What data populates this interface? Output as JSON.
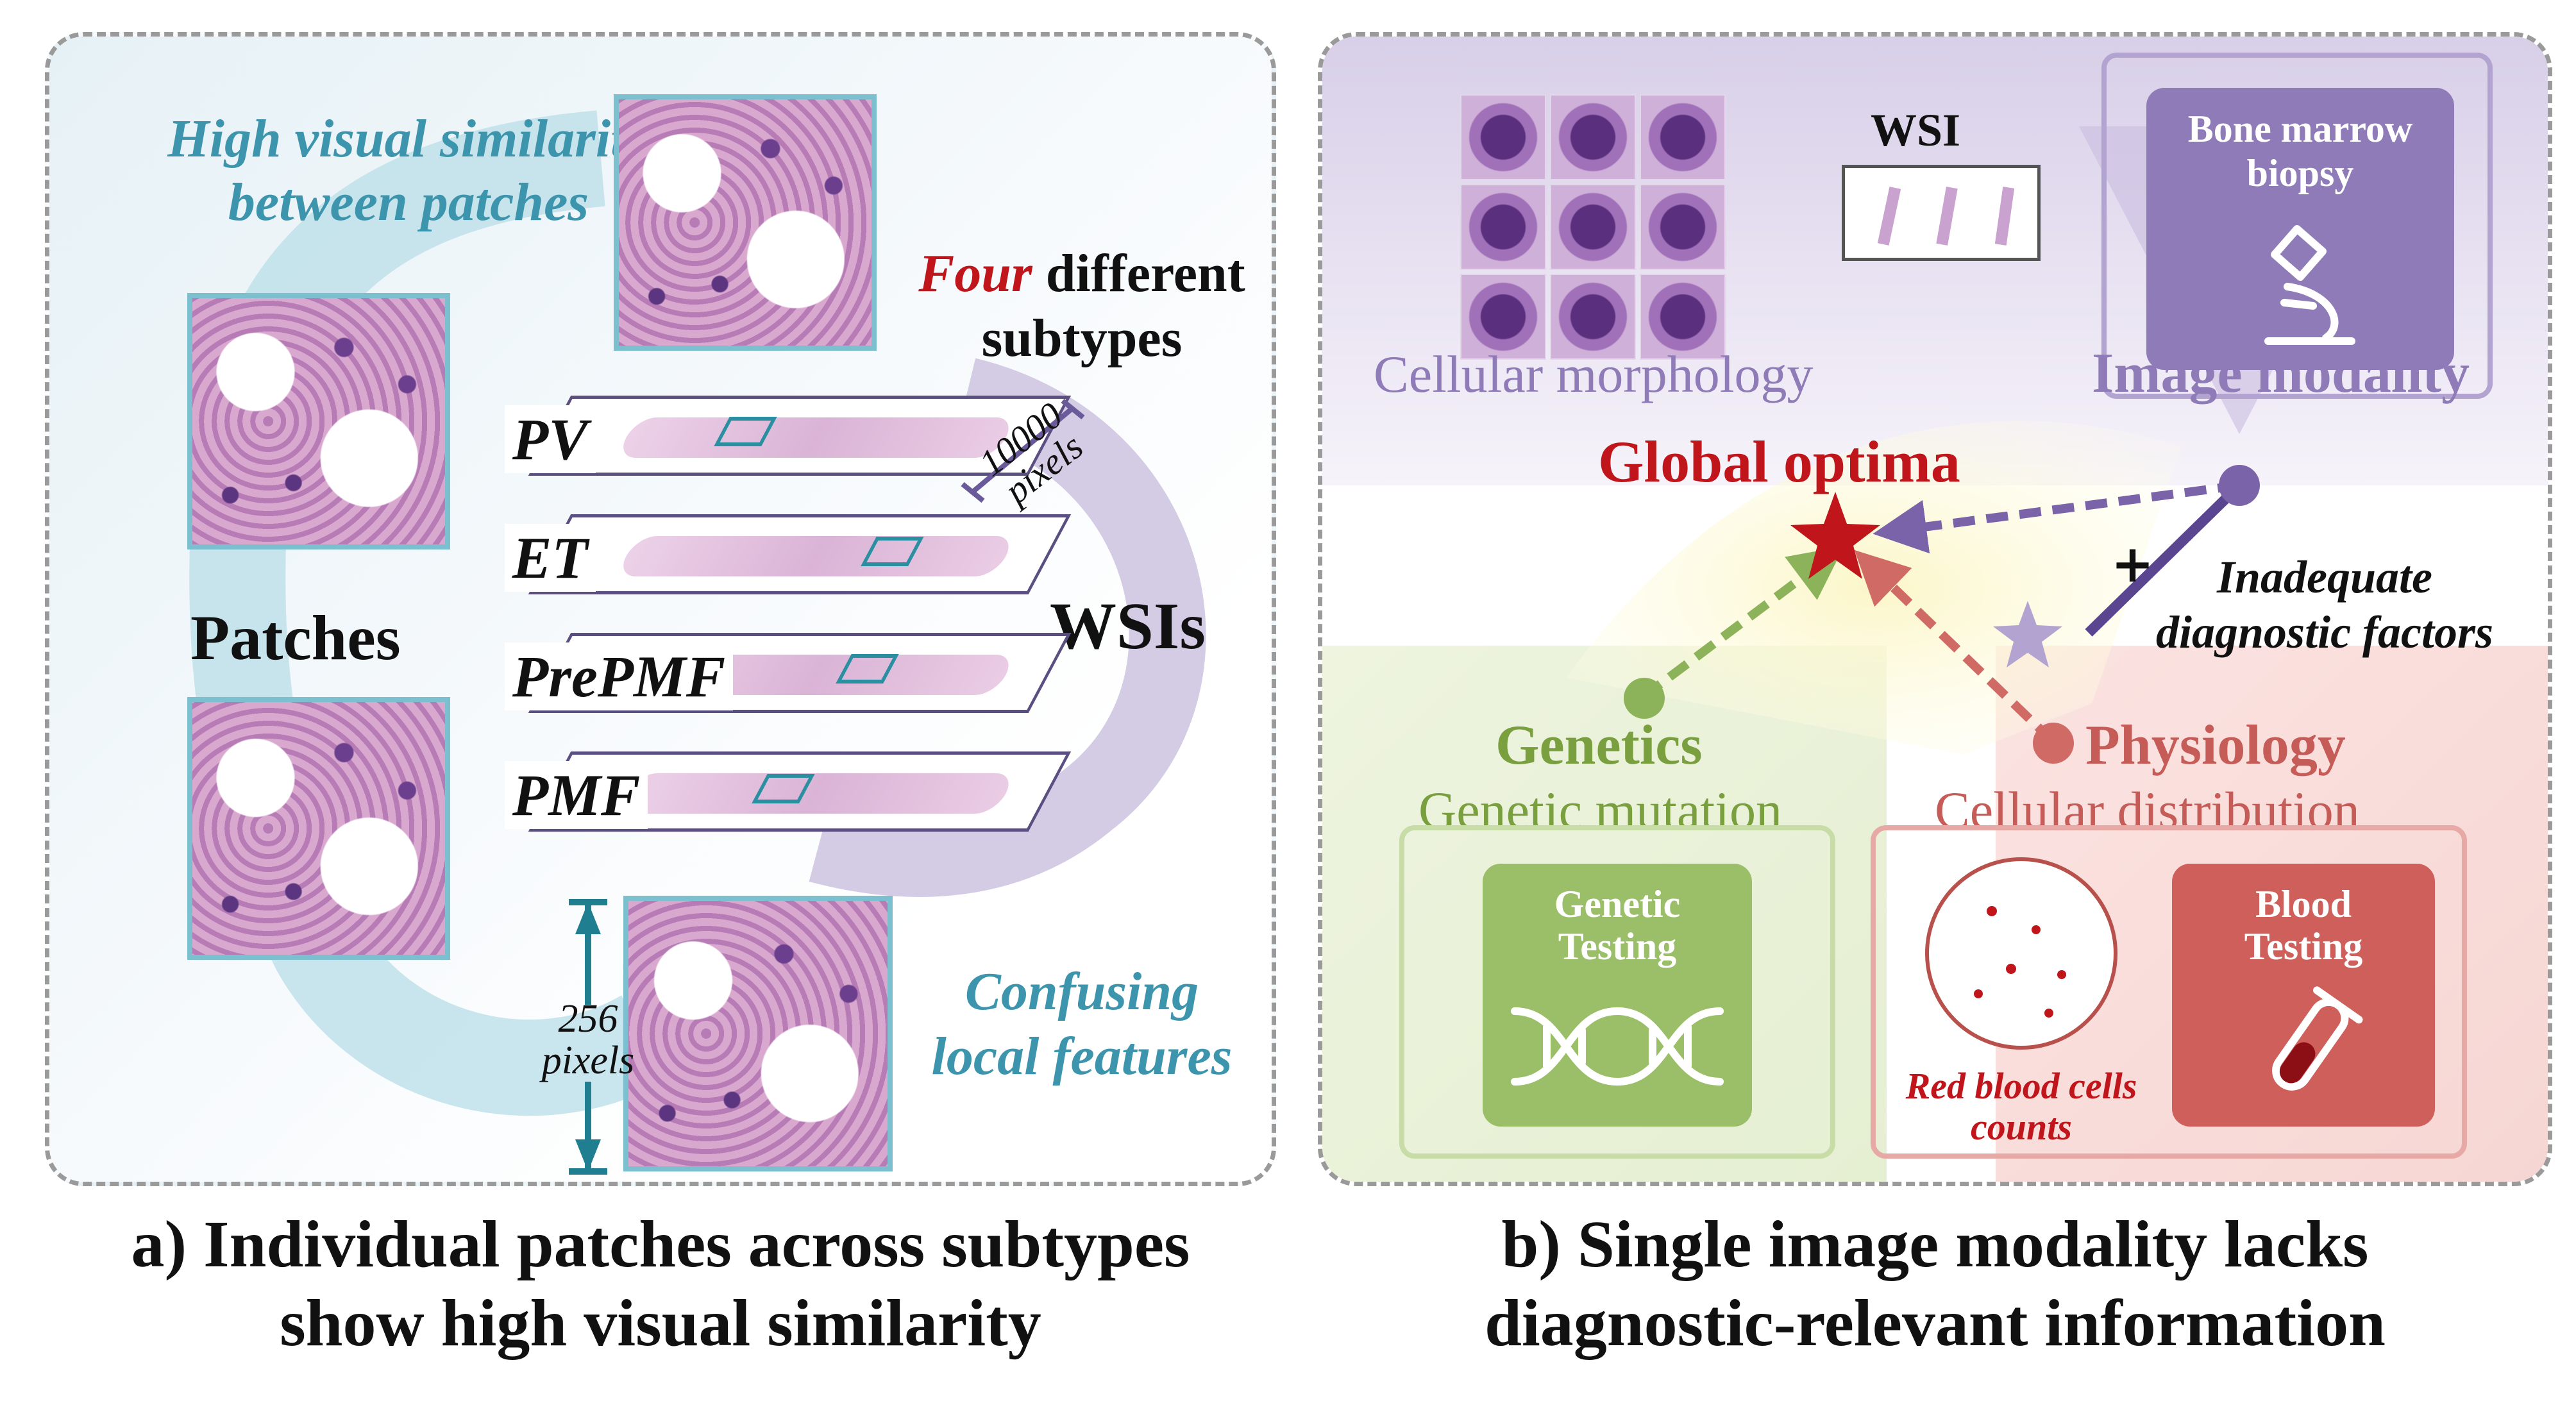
{
  "panel_a": {
    "similarity_line1": "High visual similarity",
    "similarity_line2": "between patches",
    "four": "Four",
    "different": " different",
    "subtypes": "subtypes",
    "patches": "Patches",
    "wsis": "WSIs",
    "slides": [
      "PV",
      "ET",
      "PrePMF",
      "PMF"
    ],
    "wsi_size_num": "10000",
    "wsi_size_unit": "pixels",
    "patch_size_num": "256",
    "patch_size_unit": "pixels",
    "confusing_line1": "Confusing",
    "confusing_line2": "local features",
    "caption_line1": "a) Individual patches across subtypes",
    "caption_line2": "show high visual similarity"
  },
  "panel_b": {
    "wsi": "WSI",
    "bone_marrow_line1": "Bone marrow",
    "bone_marrow_line2": "biopsy",
    "cellular_morphology": "Cellular morphology",
    "image_modality": "Image modality",
    "global_optima": "Global optima",
    "inadequate_line1": "Inadequate",
    "inadequate_line2": "diagnostic factors",
    "genetics": "Genetics",
    "genetic_mutation": "Genetic mutation",
    "genetic_testing_line1": "Genetic",
    "genetic_testing_line2": "Testing",
    "physiology": "Physiology",
    "cellular_distribution": "Cellular distribution",
    "blood_testing_line1": "Blood",
    "blood_testing_line2": "Testing",
    "rbc_line1": "Red blood cells",
    "rbc_line2": "counts",
    "caption_line1": "b) Single image modality lacks",
    "caption_line2": "diagnostic-relevant information"
  },
  "colors": {
    "teal": "#3d95ad",
    "purple": "#7a63a8",
    "red": "#c0151b",
    "green": "#6e9a3a",
    "salmon": "#d06a65"
  }
}
